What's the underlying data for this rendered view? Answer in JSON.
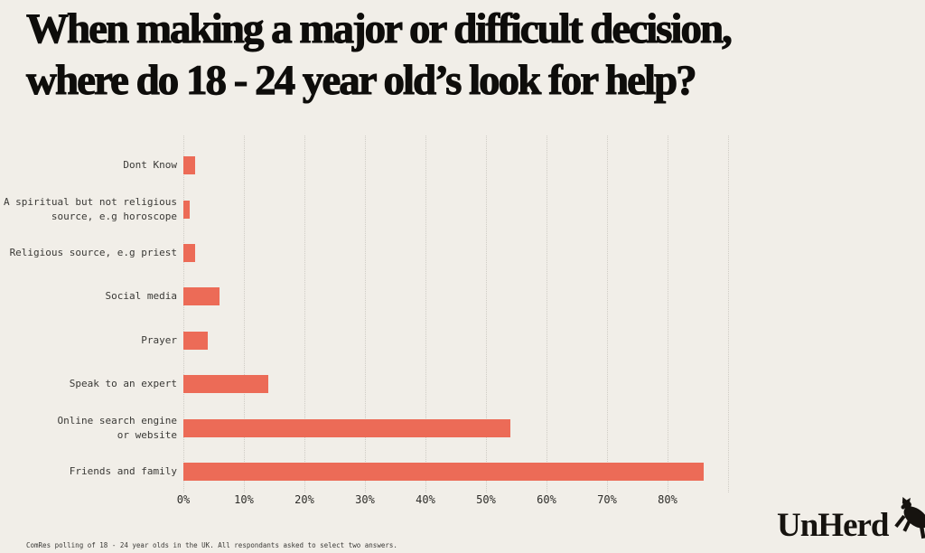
{
  "title": {
    "line1": "When making a major or difficult decision,",
    "line2": "where do 18 - 24 year old’s look for help?"
  },
  "footer": "ComRes polling of 18 - 24 year olds in the UK. All respondants asked to select two answers.",
  "logo": {
    "text": "UnHerd",
    "icon": "rearing-cow-icon"
  },
  "colors": {
    "background": "#f1eee8",
    "bar": "#ec6b57",
    "title_text": "#0e0d0b",
    "label_text": "#3a3936",
    "gridline": "#cfccc5"
  },
  "chart_data": {
    "type": "bar",
    "orientation": "horizontal",
    "title": "When making a major or difficult decision, where do 18 - 24 year old’s look for help?",
    "xlabel": "",
    "ylabel": "",
    "xlim": [
      0,
      90
    ],
    "grid": "vertical-dotted",
    "gridline_step_pct": 10,
    "categories": [
      "Dont Know",
      "A spiritual but not religious source, e.g horoscope",
      "Religious source, e.g priest",
      "Social media",
      "Prayer",
      "Speak to an expert",
      "Online search engine or website",
      "Friends and family"
    ],
    "label_lines": [
      [
        "Dont Know"
      ],
      [
        "A spiritual but not religious",
        "source, e.g horoscope"
      ],
      [
        "Religious source, e.g priest"
      ],
      [
        "Social media"
      ],
      [
        "Prayer"
      ],
      [
        "Speak to an expert"
      ],
      [
        "Online search engine",
        "or website"
      ],
      [
        "Friends and family"
      ]
    ],
    "values": [
      2,
      1,
      2,
      6,
      4,
      14,
      54,
      86
    ],
    "unit": "%",
    "tick_labels": [
      "0%",
      "10%",
      "20%",
      "30%",
      "40%",
      "50%",
      "60%",
      "70%",
      "80%"
    ]
  }
}
